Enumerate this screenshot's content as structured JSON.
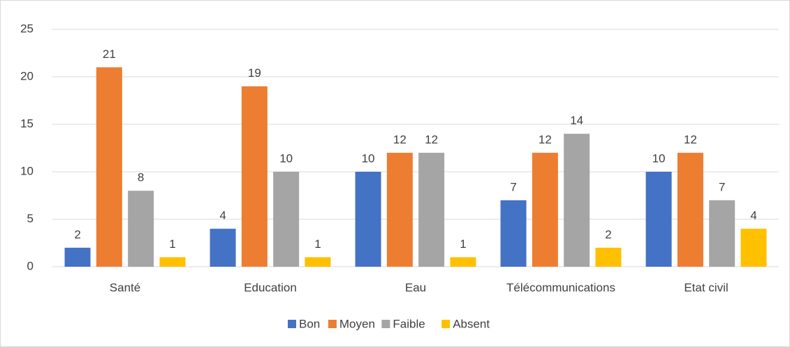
{
  "chart_data": {
    "type": "bar",
    "categories": [
      "Santé",
      "Education",
      "Eau",
      "Télécommunications",
      "Etat civil"
    ],
    "series": [
      {
        "name": "Bon",
        "color": "#4472c4",
        "values": [
          2,
          4,
          10,
          7,
          10
        ]
      },
      {
        "name": "Moyen",
        "color": "#ed7d31",
        "values": [
          21,
          19,
          12,
          12,
          12
        ]
      },
      {
        "name": "Faible",
        "color": "#a5a5a5",
        "values": [
          8,
          10,
          12,
          14,
          7
        ]
      },
      {
        "name": "Absent",
        "color": "#ffc000",
        "values": [
          1,
          1,
          1,
          2,
          4
        ]
      }
    ],
    "ylim": [
      0,
      25
    ],
    "yticks": [
      0,
      5,
      10,
      15,
      20,
      25
    ],
    "grid": true,
    "legend": "bottom"
  }
}
